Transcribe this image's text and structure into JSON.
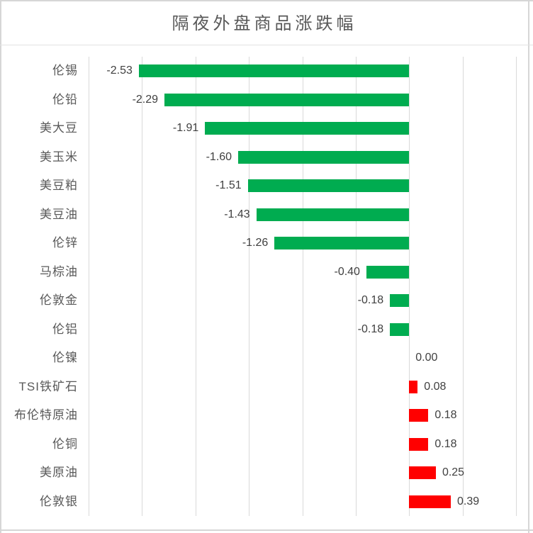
{
  "title": "隔夜外盘商品涨跌幅",
  "chart_data": {
    "type": "bar",
    "orientation": "horizontal",
    "title": "隔夜外盘商品涨跌幅",
    "categories": [
      "伦锡",
      "伦铅",
      "美大豆",
      "美玉米",
      "美豆粕",
      "美豆油",
      "伦锌",
      "马棕油",
      "伦敦金",
      "伦铝",
      "伦镍",
      "TSI铁矿石",
      "布伦特原油",
      "伦铜",
      "美原油",
      "伦敦银"
    ],
    "values": [
      -2.53,
      -2.29,
      -1.91,
      -1.6,
      -1.51,
      -1.43,
      -1.26,
      -0.4,
      -0.18,
      -0.18,
      0.0,
      0.08,
      0.18,
      0.18,
      0.25,
      0.39
    ],
    "value_labels": [
      "-2.53",
      "-2.29",
      "-1.91",
      "-1.60",
      "-1.51",
      "-1.43",
      "-1.26",
      "-0.40",
      "-0.18",
      "-0.18",
      "0.00",
      "0.08",
      "0.18",
      "0.18",
      "0.25",
      "0.39"
    ],
    "xlim": [
      -3.0,
      1.0
    ],
    "gridline_step": 0.5,
    "grid": true,
    "legend": "none",
    "xlabel": "",
    "ylabel": "",
    "colors": {
      "negative_bar": "#00AC50",
      "positive_bar": "#FF0000",
      "gridline": "#d9d9d9",
      "frame": "#d6d6d6",
      "title_text": "#595959",
      "category_text": "#595959",
      "value_text": "#404040"
    }
  }
}
